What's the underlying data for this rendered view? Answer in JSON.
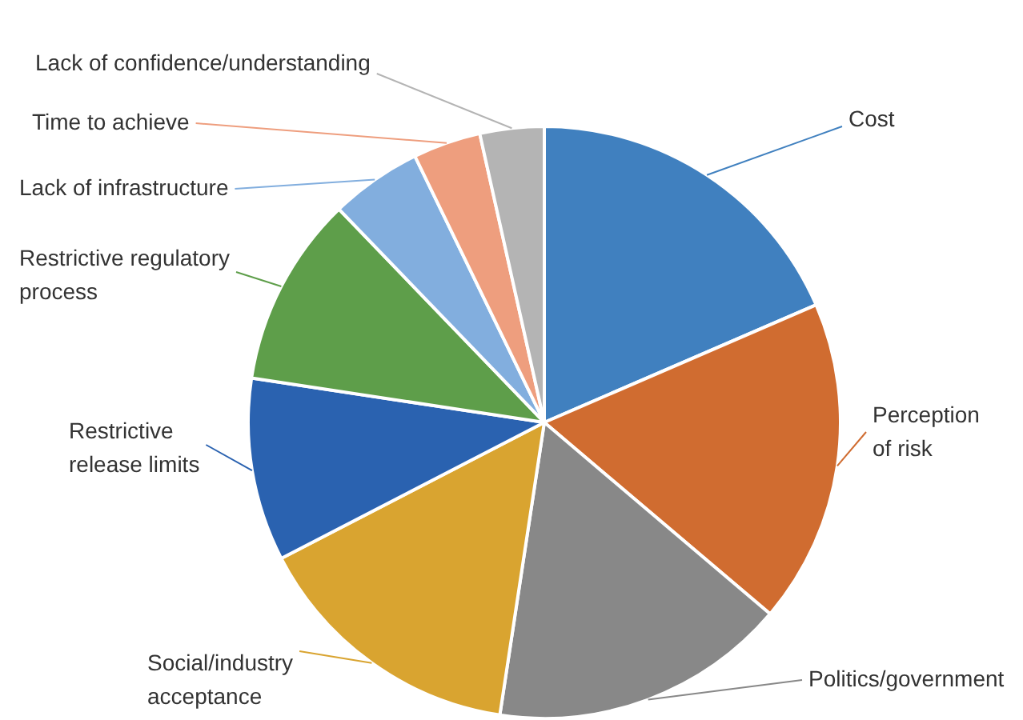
{
  "chart_data": {
    "type": "pie",
    "categories": [
      "Cost",
      "Perception of risk",
      "Politics/government",
      "Social/industry acceptance",
      "Restrictive release limits",
      "Restrictive regulatory process",
      "Lack of infrastructure",
      "Time to achieve",
      "Lack of confidence/understanding"
    ],
    "values": [
      18.5,
      17.7,
      16.2,
      15,
      10,
      10.4,
      5,
      3.7,
      3.5
    ],
    "colors": [
      "#4080bf",
      "#d06c30",
      "#888888",
      "#d9a430",
      "#2a62b0",
      "#5e9e4a",
      "#82aede",
      "#ee9e7e",
      "#b4b4b4"
    ],
    "legend": false
  }
}
